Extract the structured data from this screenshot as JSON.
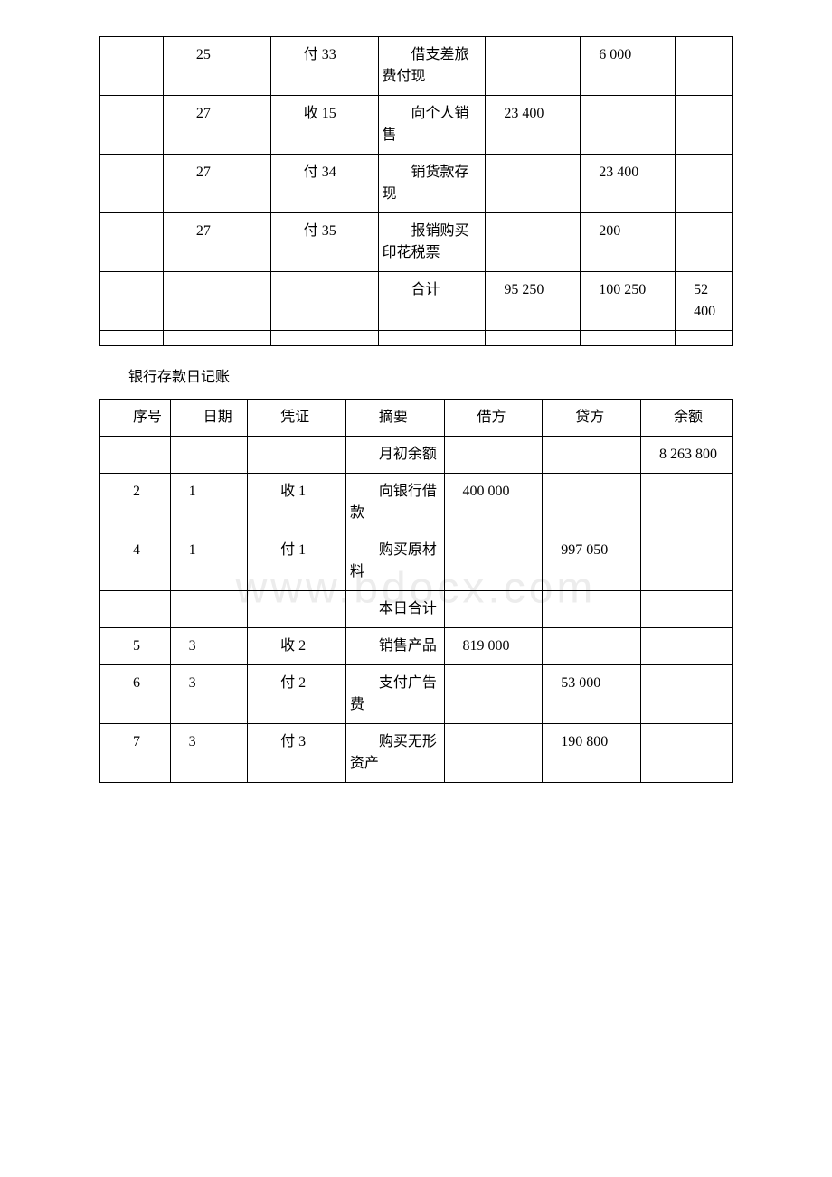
{
  "background_color": "#ffffff",
  "border_color": "#000000",
  "text_color": "#000000",
  "watermark_text": "www.bdocx.com",
  "watermark_color": "rgba(200,200,200,0.35)",
  "font_family": "SimSun",
  "font_size_body": 16,
  "table1": {
    "rows": [
      {
        "c1": "",
        "c2": "25",
        "c3": "付 33",
        "c4": "借支差旅费付现",
        "c5": "",
        "c6": "6 000",
        "c7": ""
      },
      {
        "c1": "",
        "c2": "27",
        "c3": "收 15",
        "c4": "向个人销售",
        "c5": "23 400",
        "c6": "",
        "c7": ""
      },
      {
        "c1": "",
        "c2": "27",
        "c3": "付 34",
        "c4": "销货款存现",
        "c5": "",
        "c6": "23 400",
        "c7": ""
      },
      {
        "c1": "",
        "c2": "27",
        "c3": "付 35",
        "c4": "报销购买印花税票",
        "c5": "",
        "c6": "200",
        "c7": ""
      },
      {
        "c1": "",
        "c2": "",
        "c3": "",
        "c4": "合计",
        "c5": "95 250",
        "c6": "100 250",
        "c7": "52 400"
      },
      {
        "c1": "",
        "c2": "",
        "c3": "",
        "c4": "",
        "c5": "",
        "c6": "",
        "c7": ""
      }
    ]
  },
  "section2_title": "银行存款日记账",
  "table2": {
    "header": {
      "c1": "序号",
      "c2": "日期",
      "c3": "凭证",
      "c4": "摘要",
      "c5": "借方",
      "c6": "贷方",
      "c7": "余额"
    },
    "rows": [
      {
        "c1": "",
        "c2": "",
        "c3": "",
        "c4": "月初余额",
        "c5": "",
        "c6": "",
        "c7": "8 263 800"
      },
      {
        "c1": "2",
        "c2": "1",
        "c3": "收 1",
        "c4": "向银行借款",
        "c5": "400 000",
        "c6": "",
        "c7": ""
      },
      {
        "c1": "4",
        "c2": "1",
        "c3": "付 1",
        "c4": "购买原材料",
        "c5": "",
        "c6": "997 050",
        "c7": ""
      },
      {
        "c1": "",
        "c2": "",
        "c3": "",
        "c4": "本日合计",
        "c5": "",
        "c6": "",
        "c7": ""
      },
      {
        "c1": "5",
        "c2": "3",
        "c3": "收 2",
        "c4": "销售产品",
        "c5": "819 000",
        "c6": "",
        "c7": ""
      },
      {
        "c1": "6",
        "c2": "3",
        "c3": "付 2",
        "c4": "支付广告费",
        "c5": "",
        "c6": "53 000",
        "c7": ""
      },
      {
        "c1": "7",
        "c2": "3",
        "c3": "付 3",
        "c4": "购买无形资产",
        "c5": "",
        "c6": "190 800",
        "c7": ""
      }
    ]
  }
}
